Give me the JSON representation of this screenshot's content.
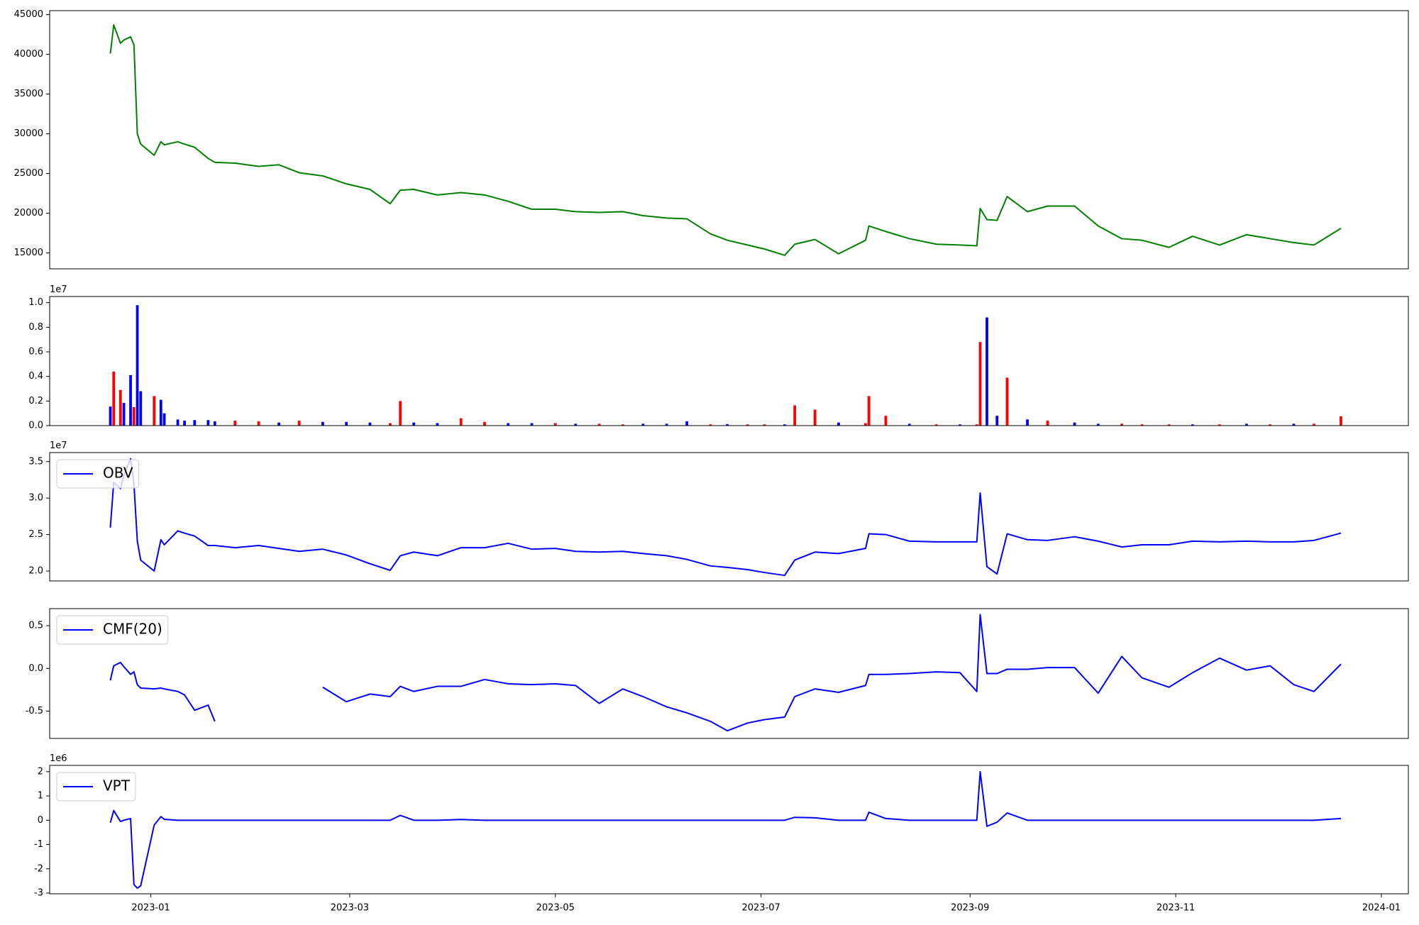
{
  "chart_data": [
    {
      "type": "line",
      "x": [
        "2022-12-20",
        "2022-12-21",
        "2022-12-23",
        "2022-12-24",
        "2022-12-26",
        "2022-12-27",
        "2022-12-28",
        "2022-12-29",
        "2023-01-02",
        "2023-01-04",
        "2023-01-05",
        "2023-01-09",
        "2023-01-11",
        "2023-01-14",
        "2023-01-18",
        "2023-01-20",
        "2023-01-26",
        "2023-02-02",
        "2023-02-08",
        "2023-02-14",
        "2023-02-21",
        "2023-02-28",
        "2023-03-07",
        "2023-03-13",
        "2023-03-16",
        "2023-03-20",
        "2023-03-27",
        "2023-04-03",
        "2023-04-10",
        "2023-04-17",
        "2023-04-24",
        "2023-05-01",
        "2023-05-07",
        "2023-05-14",
        "2023-05-21",
        "2023-05-27",
        "2023-06-03",
        "2023-06-09",
        "2023-06-16",
        "2023-06-21",
        "2023-06-27",
        "2023-07-02",
        "2023-07-08",
        "2023-07-11",
        "2023-07-17",
        "2023-07-24",
        "2023-08-01",
        "2023-08-02",
        "2023-08-07",
        "2023-08-14",
        "2023-08-22",
        "2023-08-29",
        "2023-09-03",
        "2023-09-04",
        "2023-09-06",
        "2023-09-09",
        "2023-09-12",
        "2023-09-18",
        "2023-09-24",
        "2023-10-02",
        "2023-10-09",
        "2023-10-16",
        "2023-10-22",
        "2023-10-30",
        "2023-11-06",
        "2023-11-14",
        "2023-11-22",
        "2023-11-29",
        "2023-12-06",
        "2023-12-12",
        "2023-12-20"
      ],
      "series": [
        {
          "color": "#008000",
          "values": [
            40100,
            43700,
            41400,
            41800,
            42200,
            41200,
            30000,
            28700,
            27300,
            29000,
            28600,
            29000,
            28700,
            28300,
            26900,
            26400,
            26300,
            25900,
            26100,
            25100,
            24700,
            23700,
            23000,
            21200,
            22900,
            23000,
            22300,
            22600,
            22300,
            21500,
            20500,
            20500,
            20200,
            20100,
            20200,
            19700,
            19400,
            19300,
            17400,
            16600,
            16000,
            15500,
            14700,
            16100,
            16700,
            14900,
            16600,
            18400,
            17700,
            16800,
            16100,
            16000,
            15900,
            20600,
            19200,
            19100,
            22100,
            20200,
            20900,
            20900,
            18400,
            16800,
            16600,
            15700,
            17100,
            16000,
            17300,
            16800,
            16300,
            16000,
            18100
          ]
        }
      ],
      "xlim": [
        "2022-12-02",
        "2024-01-09"
      ],
      "ylim": [
        13000,
        45500
      ],
      "yticks": [
        15000,
        20000,
        25000,
        30000,
        35000,
        40000,
        45000
      ]
    },
    {
      "type": "bar",
      "x": [
        "2022-12-20",
        "2022-12-21",
        "2022-12-23",
        "2022-12-24",
        "2022-12-26",
        "2022-12-27",
        "2022-12-28",
        "2022-12-29",
        "2023-01-02",
        "2023-01-04",
        "2023-01-05",
        "2023-01-09",
        "2023-01-11",
        "2023-01-14",
        "2023-01-18",
        "2023-01-20",
        "2023-01-26",
        "2023-02-02",
        "2023-02-08",
        "2023-02-14",
        "2023-02-21",
        "2023-02-28",
        "2023-03-07",
        "2023-03-13",
        "2023-03-16",
        "2023-03-20",
        "2023-03-27",
        "2023-04-03",
        "2023-04-10",
        "2023-04-17",
        "2023-04-24",
        "2023-05-01",
        "2023-05-07",
        "2023-05-14",
        "2023-05-21",
        "2023-05-27",
        "2023-06-03",
        "2023-06-09",
        "2023-06-16",
        "2023-06-21",
        "2023-06-27",
        "2023-07-02",
        "2023-07-08",
        "2023-07-11",
        "2023-07-17",
        "2023-07-24",
        "2023-08-01",
        "2023-08-02",
        "2023-08-07",
        "2023-08-14",
        "2023-08-22",
        "2023-08-29",
        "2023-09-03",
        "2023-09-04",
        "2023-09-06",
        "2023-09-09",
        "2023-09-12",
        "2023-09-18",
        "2023-09-24",
        "2023-10-02",
        "2023-10-09",
        "2023-10-16",
        "2023-10-22",
        "2023-10-30",
        "2023-11-06",
        "2023-11-14",
        "2023-11-22",
        "2023-11-29",
        "2023-12-06",
        "2023-12-12",
        "2023-12-20"
      ],
      "values": [
        1550000,
        4400000,
        2900000,
        1850000,
        4100000,
        1500000,
        9800000,
        2800000,
        2400000,
        2100000,
        1000000,
        500000,
        400000,
        450000,
        450000,
        350000,
        400000,
        350000,
        250000,
        400000,
        300000,
        300000,
        250000,
        200000,
        2000000,
        250000,
        200000,
        600000,
        300000,
        200000,
        200000,
        200000,
        150000,
        150000,
        100000,
        150000,
        150000,
        350000,
        100000,
        120000,
        100000,
        100000,
        100000,
        1650000,
        1300000,
        250000,
        200000,
        2400000,
        800000,
        150000,
        100000,
        100000,
        100000,
        6800000,
        8800000,
        800000,
        3900000,
        500000,
        400000,
        250000,
        150000,
        150000,
        100000,
        100000,
        100000,
        100000,
        150000,
        100000,
        150000,
        150000,
        750000
      ],
      "colors": [
        "blue",
        "red",
        "red",
        "blue",
        "blue",
        "red",
        "blue",
        "blue",
        "red",
        "blue",
        "blue",
        "blue",
        "blue",
        "blue",
        "blue",
        "blue",
        "red",
        "red",
        "blue",
        "red",
        "blue",
        "blue",
        "blue",
        "red",
        "red",
        "blue",
        "blue",
        "red",
        "red",
        "blue",
        "blue",
        "red",
        "blue",
        "red",
        "red",
        "blue",
        "blue",
        "blue",
        "red",
        "blue",
        "red",
        "red",
        "blue",
        "red",
        "red",
        "blue",
        "red",
        "red",
        "red",
        "blue",
        "red",
        "blue",
        "red",
        "red",
        "blue",
        "blue",
        "red",
        "blue",
        "red",
        "blue",
        "blue",
        "red",
        "red",
        "red",
        "blue",
        "red",
        "blue",
        "red",
        "blue",
        "red",
        "red"
      ],
      "xlim": [
        "2022-12-02",
        "2024-01-09"
      ],
      "ylim": [
        0,
        10500000
      ],
      "y_offset_label": "1e7",
      "yticks": [
        {
          "value": 0,
          "label": "0.0"
        },
        {
          "value": 2000000,
          "label": "0.2"
        },
        {
          "value": 4000000,
          "label": "0.4"
        },
        {
          "value": 6000000,
          "label": "0.6"
        },
        {
          "value": 8000000,
          "label": "0.8"
        },
        {
          "value": 10000000,
          "label": "1.0"
        }
      ]
    },
    {
      "type": "line",
      "x": [
        "2022-12-20",
        "2022-12-21",
        "2022-12-23",
        "2022-12-24",
        "2022-12-26",
        "2022-12-27",
        "2022-12-28",
        "2022-12-29",
        "2023-01-02",
        "2023-01-04",
        "2023-01-05",
        "2023-01-09",
        "2023-01-11",
        "2023-01-14",
        "2023-01-18",
        "2023-01-20",
        "2023-01-26",
        "2023-02-02",
        "2023-02-08",
        "2023-02-14",
        "2023-02-21",
        "2023-02-28",
        "2023-03-07",
        "2023-03-13",
        "2023-03-16",
        "2023-03-20",
        "2023-03-27",
        "2023-04-03",
        "2023-04-10",
        "2023-04-17",
        "2023-04-24",
        "2023-05-01",
        "2023-05-07",
        "2023-05-14",
        "2023-05-21",
        "2023-05-27",
        "2023-06-03",
        "2023-06-09",
        "2023-06-16",
        "2023-06-21",
        "2023-06-27",
        "2023-07-02",
        "2023-07-08",
        "2023-07-11",
        "2023-07-17",
        "2023-07-24",
        "2023-08-01",
        "2023-08-02",
        "2023-08-07",
        "2023-08-14",
        "2023-08-22",
        "2023-08-29",
        "2023-09-03",
        "2023-09-04",
        "2023-09-06",
        "2023-09-09",
        "2023-09-12",
        "2023-09-18",
        "2023-09-24",
        "2023-10-02",
        "2023-10-09",
        "2023-10-16",
        "2023-10-22",
        "2023-10-30",
        "2023-11-06",
        "2023-11-14",
        "2023-11-22",
        "2023-11-29",
        "2023-12-06",
        "2023-12-12",
        "2023-12-20"
      ],
      "series": [
        {
          "name": "OBV",
          "color": "#0000ff",
          "values": [
            25950000,
            32150000,
            31300000,
            33100000,
            35400000,
            31900000,
            24100000,
            21500000,
            20000000,
            24300000,
            23600000,
            25500000,
            25200000,
            24800000,
            23500000,
            23500000,
            23200000,
            23500000,
            23100000,
            22700000,
            23000000,
            22200000,
            21000000,
            20100000,
            22100000,
            22600000,
            22100000,
            23200000,
            23200000,
            23800000,
            23000000,
            23100000,
            22700000,
            22600000,
            22700000,
            22400000,
            22100000,
            21600000,
            20700000,
            20500000,
            20200000,
            19800000,
            19400000,
            21500000,
            22600000,
            22400000,
            23100000,
            25100000,
            25000000,
            24100000,
            24000000,
            24000000,
            24000000,
            30700000,
            20600000,
            19600000,
            25100000,
            24300000,
            24200000,
            24700000,
            24100000,
            23300000,
            23600000,
            23600000,
            24100000,
            24000000,
            24100000,
            24000000,
            24000000,
            24200000,
            25200000
          ]
        }
      ],
      "legend": "upper left",
      "xlim": [
        "2022-12-02",
        "2024-01-09"
      ],
      "ylim": [
        18640000,
        36240000
      ],
      "y_offset_label": "1e7",
      "yticks": [
        {
          "value": 20000000,
          "label": "2.0"
        },
        {
          "value": 25000000,
          "label": "2.5"
        },
        {
          "value": 30000000,
          "label": "3.0"
        },
        {
          "value": 35000000,
          "label": "3.5"
        }
      ]
    },
    {
      "type": "line",
      "x": [
        "2022-12-20",
        "2022-12-21",
        "2022-12-23",
        "2022-12-24",
        "2022-12-26",
        "2022-12-27",
        "2022-12-28",
        "2022-12-29",
        "2023-01-02",
        "2023-01-04",
        "2023-01-05",
        "2023-01-09",
        "2023-01-11",
        "2023-01-14",
        "2023-01-18",
        "2023-01-20",
        "2023-01-26",
        "2023-02-02",
        "2023-02-08",
        "2023-02-14",
        "2023-02-21",
        "2023-02-28",
        "2023-03-07",
        "2023-03-13",
        "2023-03-16",
        "2023-03-20",
        "2023-03-27",
        "2023-04-03",
        "2023-04-10",
        "2023-04-17",
        "2023-04-24",
        "2023-05-01",
        "2023-05-07",
        "2023-05-14",
        "2023-05-21",
        "2023-05-27",
        "2023-06-03",
        "2023-06-09",
        "2023-06-16",
        "2023-06-21",
        "2023-06-27",
        "2023-07-02",
        "2023-07-08",
        "2023-07-11",
        "2023-07-17",
        "2023-07-24",
        "2023-08-01",
        "2023-08-02",
        "2023-08-07",
        "2023-08-14",
        "2023-08-22",
        "2023-08-29",
        "2023-09-03",
        "2023-09-04",
        "2023-09-06",
        "2023-09-09",
        "2023-09-12",
        "2023-09-18",
        "2023-09-24",
        "2023-10-02",
        "2023-10-09",
        "2023-10-16",
        "2023-10-22",
        "2023-10-30",
        "2023-11-06",
        "2023-11-14",
        "2023-11-22",
        "2023-11-29",
        "2023-12-06",
        "2023-12-12",
        "2023-12-20"
      ],
      "series": [
        {
          "name": "CMF(20)",
          "color": "#0000ff",
          "values": [
            -0.14,
            0.03,
            0.07,
            0.02,
            -0.07,
            -0.04,
            -0.19,
            -0.23,
            -0.24,
            -0.23,
            -0.24,
            -0.27,
            -0.31,
            -0.49,
            -0.43,
            -0.62,
            null,
            null,
            null,
            null,
            -0.22,
            -0.39,
            -0.3,
            -0.33,
            -0.21,
            -0.27,
            -0.21,
            -0.21,
            -0.13,
            -0.18,
            -0.19,
            -0.18,
            -0.2,
            -0.41,
            -0.24,
            -0.33,
            -0.45,
            -0.52,
            -0.62,
            -0.73,
            -0.64,
            -0.6,
            -0.57,
            -0.33,
            -0.24,
            -0.28,
            -0.2,
            -0.07,
            -0.07,
            -0.06,
            -0.04,
            -0.05,
            -0.27,
            0.63,
            -0.06,
            -0.06,
            -0.01,
            -0.01,
            0.01,
            0.01,
            -0.29,
            0.14,
            -0.11,
            -0.22,
            -0.05,
            0.12,
            -0.02,
            0.03,
            -0.19,
            -0.27,
            0.05
          ]
        }
      ],
      "legend": "upper left",
      "xlim": [
        "2022-12-02",
        "2024-01-09"
      ],
      "ylim": [
        -0.82,
        0.7
      ],
      "yticks": [
        -0.5,
        {
          "value": 0,
          "label": "0.0"
        },
        0.5
      ]
    },
    {
      "type": "line",
      "x": [
        "2022-12-20",
        "2022-12-21",
        "2022-12-23",
        "2022-12-24",
        "2022-12-26",
        "2022-12-27",
        "2022-12-28",
        "2022-12-29",
        "2023-01-02",
        "2023-01-04",
        "2023-01-05",
        "2023-01-09",
        "2023-01-11",
        "2023-01-14",
        "2023-01-18",
        "2023-01-20",
        "2023-01-26",
        "2023-02-02",
        "2023-02-08",
        "2023-02-14",
        "2023-02-21",
        "2023-02-28",
        "2023-03-07",
        "2023-03-13",
        "2023-03-16",
        "2023-03-20",
        "2023-03-27",
        "2023-04-03",
        "2023-04-10",
        "2023-04-17",
        "2023-04-24",
        "2023-05-01",
        "2023-05-07",
        "2023-05-14",
        "2023-05-21",
        "2023-05-27",
        "2023-06-03",
        "2023-06-09",
        "2023-06-16",
        "2023-06-21",
        "2023-06-27",
        "2023-07-02",
        "2023-07-08",
        "2023-07-11",
        "2023-07-17",
        "2023-07-24",
        "2023-08-01",
        "2023-08-02",
        "2023-08-07",
        "2023-08-14",
        "2023-08-22",
        "2023-08-29",
        "2023-09-03",
        "2023-09-04",
        "2023-09-06",
        "2023-09-09",
        "2023-09-12",
        "2023-09-18",
        "2023-09-24",
        "2023-10-02",
        "2023-10-09",
        "2023-10-16",
        "2023-10-22",
        "2023-10-30",
        "2023-11-06",
        "2023-11-14",
        "2023-11-22",
        "2023-11-29",
        "2023-12-06",
        "2023-12-12",
        "2023-12-20"
      ],
      "series": [
        {
          "name": "VPT",
          "color": "#0000ff",
          "values": [
            -100000,
            400000,
            -50000,
            0,
            70000,
            -2650000,
            -2800000,
            -2700000,
            -200000,
            150000,
            40000,
            0,
            0,
            0,
            0,
            0,
            0,
            0,
            0,
            0,
            0,
            0,
            0,
            0,
            200000,
            0,
            0,
            30000,
            0,
            0,
            0,
            0,
            0,
            0,
            0,
            0,
            0,
            0,
            0,
            0,
            0,
            0,
            0,
            120000,
            100000,
            0,
            0,
            330000,
            70000,
            0,
            0,
            0,
            0,
            2000000,
            -250000,
            -80000,
            300000,
            0,
            0,
            0,
            0,
            0,
            0,
            0,
            0,
            0,
            0,
            0,
            0,
            0,
            70000
          ]
        }
      ],
      "legend": "upper left",
      "xlim": [
        "2022-12-02",
        "2024-01-09"
      ],
      "ylim": [
        -3030000,
        2260000
      ],
      "y_offset_label": "1e6",
      "yticks": [
        {
          "value": -3000000,
          "label": "-3"
        },
        {
          "value": -2000000,
          "label": "-2"
        },
        {
          "value": -1000000,
          "label": "-1"
        },
        {
          "value": 0,
          "label": "0"
        },
        {
          "value": 1000000,
          "label": "1"
        },
        {
          "value": 2000000,
          "label": "2"
        }
      ],
      "xticks": [
        {
          "value": "2023-01-01",
          "label": "2023-01"
        },
        {
          "value": "2023-03-01",
          "label": "2023-03"
        },
        {
          "value": "2023-05-01",
          "label": "2023-05"
        },
        {
          "value": "2023-07-01",
          "label": "2023-07"
        },
        {
          "value": "2023-09-01",
          "label": "2023-09"
        },
        {
          "value": "2023-11-01",
          "label": "2023-11"
        },
        {
          "value": "2024-01-01",
          "label": "2024-01"
        }
      ]
    }
  ]
}
